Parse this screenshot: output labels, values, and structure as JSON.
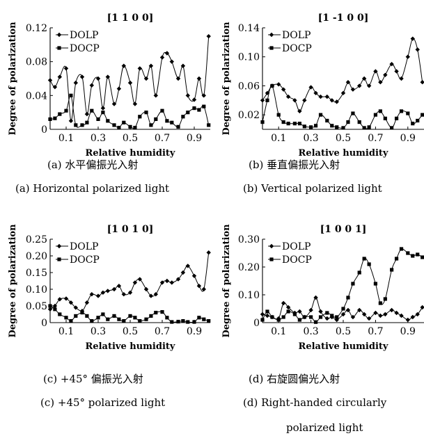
{
  "chart_data": [
    {
      "type": "line",
      "title": "[1 1 0 0]",
      "xlabel": "Relative humidity",
      "ylabel": "Degree of polarization",
      "xlim": [
        0,
        1
      ],
      "ylim": [
        0,
        0.12
      ],
      "xticks": [
        "0.1",
        "0.3",
        "0.5",
        "0.7",
        "0.9"
      ],
      "xtick_values": [
        0.1,
        0.3,
        0.5,
        0.7,
        0.9
      ],
      "yticks": [
        "0",
        "0.04",
        "0.08",
        "0.12"
      ],
      "ytick_values": [
        0,
        0.04,
        0.08,
        0.12
      ],
      "legend": "top-left",
      "caption_cn": "(a) 水平偏振光入射",
      "caption_en": "(a) Horizontal polarized light",
      "series": [
        {
          "name": "DOLP",
          "marker": "diamond",
          "x": [
            0,
            0.03,
            0.06,
            0.1,
            0.13,
            0.16,
            0.2,
            0.23,
            0.26,
            0.3,
            0.33,
            0.36,
            0.4,
            0.43,
            0.46,
            0.5,
            0.53,
            0.56,
            0.6,
            0.63,
            0.66,
            0.7,
            0.73,
            0.76,
            0.8,
            0.83,
            0.86,
            0.9,
            0.93,
            0.96,
            0.99
          ],
          "y": [
            0.058,
            0.05,
            0.062,
            0.072,
            0.01,
            0.055,
            0.062,
            0.018,
            0.052,
            0.06,
            0.025,
            0.062,
            0.03,
            0.048,
            0.075,
            0.055,
            0.03,
            0.072,
            0.06,
            0.075,
            0.04,
            0.085,
            0.09,
            0.08,
            0.06,
            0.075,
            0.04,
            0.035,
            0.06,
            0.04,
            0.11
          ]
        },
        {
          "name": "DOCP",
          "marker": "square",
          "x": [
            0,
            0.03,
            0.06,
            0.1,
            0.13,
            0.16,
            0.2,
            0.23,
            0.26,
            0.3,
            0.33,
            0.36,
            0.4,
            0.43,
            0.46,
            0.5,
            0.53,
            0.56,
            0.6,
            0.63,
            0.66,
            0.7,
            0.73,
            0.76,
            0.8,
            0.83,
            0.86,
            0.9,
            0.93,
            0.96,
            0.99
          ],
          "y": [
            0.012,
            0.013,
            0.018,
            0.022,
            0.04,
            0.005,
            0.005,
            0.008,
            0.022,
            0.012,
            0.02,
            0.01,
            0.005,
            0.002,
            0.008,
            0.003,
            0.002,
            0.015,
            0.02,
            0.005,
            0.012,
            0.022,
            0.01,
            0.008,
            0.003,
            0.015,
            0.02,
            0.025,
            0.023,
            0.027,
            0.005
          ]
        }
      ]
    },
    {
      "type": "line",
      "title": "[1 -1 0 0]",
      "xlabel": "Relative humidity",
      "ylabel": "Degree of polarization",
      "xlim": [
        0,
        1
      ],
      "ylim": [
        0,
        0.14
      ],
      "xticks": [
        "0.1",
        "0.3",
        "0.5",
        "0.7",
        "0.9"
      ],
      "xtick_values": [
        0.1,
        0.3,
        0.5,
        0.7,
        0.9
      ],
      "yticks": [
        "0.02",
        "0.06",
        "0.10",
        "0.14"
      ],
      "ytick_values": [
        0.02,
        0.06,
        0.1,
        0.14
      ],
      "legend": "top-left",
      "caption_cn": "(b) 垂直偏振光入射",
      "caption_en": "(b) Vertical polarized light",
      "series": [
        {
          "name": "DOLP",
          "marker": "diamond",
          "x": [
            0,
            0.03,
            0.06,
            0.1,
            0.13,
            0.16,
            0.2,
            0.23,
            0.26,
            0.3,
            0.33,
            0.36,
            0.4,
            0.43,
            0.46,
            0.5,
            0.53,
            0.56,
            0.6,
            0.63,
            0.66,
            0.7,
            0.73,
            0.76,
            0.8,
            0.83,
            0.86,
            0.9,
            0.93,
            0.96,
            0.99
          ],
          "y": [
            0.04,
            0.05,
            0.06,
            0.062,
            0.055,
            0.045,
            0.04,
            0.025,
            0.04,
            0.058,
            0.05,
            0.045,
            0.045,
            0.04,
            0.038,
            0.05,
            0.065,
            0.055,
            0.06,
            0.07,
            0.06,
            0.08,
            0.065,
            0.075,
            0.09,
            0.08,
            0.07,
            0.1,
            0.125,
            0.11,
            0.065
          ]
        },
        {
          "name": "DOCP",
          "marker": "square",
          "x": [
            0,
            0.03,
            0.06,
            0.1,
            0.13,
            0.16,
            0.2,
            0.23,
            0.26,
            0.3,
            0.33,
            0.36,
            0.4,
            0.43,
            0.46,
            0.5,
            0.53,
            0.56,
            0.6,
            0.63,
            0.66,
            0.7,
            0.73,
            0.76,
            0.8,
            0.83,
            0.86,
            0.9,
            0.93,
            0.96,
            0.99
          ],
          "y": [
            0.01,
            0.04,
            0.06,
            0.02,
            0.01,
            0.008,
            0.008,
            0.008,
            0.004,
            0.003,
            0.005,
            0.02,
            0.012,
            0.005,
            0.003,
            0.002,
            0.01,
            0.022,
            0.01,
            0.002,
            0.003,
            0.02,
            0.025,
            0.015,
            0.002,
            0.015,
            0.025,
            0.022,
            0.008,
            0.012,
            0.02
          ]
        }
      ]
    },
    {
      "type": "line",
      "title": "[1 0 1 0]",
      "xlabel": "Relative humidity",
      "ylabel": "Degree of polarization",
      "xlim": [
        0,
        1
      ],
      "ylim": [
        0,
        0.25
      ],
      "xticks": [
        "0.1",
        "0.3",
        "0.5",
        "0.7",
        "0.9"
      ],
      "xtick_values": [
        0.1,
        0.3,
        0.5,
        0.7,
        0.9
      ],
      "yticks": [
        "0",
        "0.05",
        "0.10",
        "0.15",
        "0.20",
        "0.25"
      ],
      "ytick_values": [
        0,
        0.05,
        0.1,
        0.15,
        0.2,
        0.25
      ],
      "legend": "top-left",
      "caption_cn": "(c) +45° 偏振光入射",
      "caption_en": "(c) +45° polarized light",
      "series": [
        {
          "name": "DOLP",
          "marker": "diamond",
          "x": [
            0,
            0.03,
            0.06,
            0.1,
            0.13,
            0.16,
            0.2,
            0.23,
            0.26,
            0.3,
            0.33,
            0.36,
            0.4,
            0.43,
            0.46,
            0.5,
            0.53,
            0.56,
            0.6,
            0.63,
            0.66,
            0.7,
            0.73,
            0.76,
            0.8,
            0.83,
            0.86,
            0.9,
            0.93,
            0.96,
            0.99
          ],
          "y": [
            0.04,
            0.05,
            0.07,
            0.072,
            0.06,
            0.045,
            0.035,
            0.06,
            0.085,
            0.08,
            0.09,
            0.095,
            0.1,
            0.11,
            0.085,
            0.09,
            0.12,
            0.13,
            0.1,
            0.08,
            0.085,
            0.12,
            0.125,
            0.12,
            0.13,
            0.15,
            0.17,
            0.14,
            0.11,
            0.1,
            0.21
          ]
        },
        {
          "name": "DOCP",
          "marker": "square",
          "x": [
            0,
            0.03,
            0.06,
            0.1,
            0.13,
            0.16,
            0.2,
            0.23,
            0.26,
            0.3,
            0.33,
            0.36,
            0.4,
            0.43,
            0.46,
            0.5,
            0.53,
            0.56,
            0.6,
            0.63,
            0.66,
            0.7,
            0.73,
            0.76,
            0.8,
            0.83,
            0.86,
            0.9,
            0.93,
            0.96,
            0.99
          ],
          "y": [
            0.05,
            0.04,
            0.025,
            0.015,
            0.005,
            0.02,
            0.03,
            0.02,
            0.005,
            0.015,
            0.025,
            0.01,
            0.02,
            0.01,
            0.005,
            0.02,
            0.015,
            0.005,
            0.01,
            0.02,
            0.03,
            0.032,
            0.015,
            0.002,
            0.003,
            0.005,
            0.002,
            0.002,
            0.015,
            0.01,
            0.005
          ]
        }
      ]
    },
    {
      "type": "line",
      "title": "[1 0 0 1]",
      "xlabel": "Relative humidity",
      "ylabel": "Degree of polarization",
      "xlim": [
        0,
        1
      ],
      "ylim": [
        0,
        0.3
      ],
      "xticks": [
        "0.1",
        "0.3",
        "0.5",
        "0.7",
        "0.9"
      ],
      "xtick_values": [
        0.1,
        0.3,
        0.5,
        0.7,
        0.9
      ],
      "yticks": [
        "0",
        "0.10",
        "0.20",
        "0.30"
      ],
      "ytick_values": [
        0,
        0.1,
        0.2,
        0.3
      ],
      "legend": "top-left",
      "caption_cn": "(d) 右旋圆偏光入射",
      "caption_en": "(d) Right-handed circularly",
      "caption_en2": "polarized light",
      "series": [
        {
          "name": "DOLP",
          "marker": "diamond",
          "x": [
            0,
            0.03,
            0.06,
            0.1,
            0.13,
            0.16,
            0.2,
            0.23,
            0.26,
            0.3,
            0.33,
            0.36,
            0.4,
            0.43,
            0.46,
            0.5,
            0.53,
            0.56,
            0.6,
            0.63,
            0.66,
            0.7,
            0.73,
            0.76,
            0.8,
            0.83,
            0.86,
            0.9,
            0.93,
            0.96,
            0.99
          ],
          "y": [
            0.03,
            0.025,
            0.02,
            0.015,
            0.07,
            0.055,
            0.035,
            0.04,
            0.02,
            0.045,
            0.09,
            0.04,
            0.015,
            0.02,
            0.01,
            0.03,
            0.045,
            0.02,
            0.045,
            0.03,
            0.015,
            0.035,
            0.025,
            0.03,
            0.045,
            0.035,
            0.025,
            0.01,
            0.02,
            0.03,
            0.055
          ]
        },
        {
          "name": "DOCP",
          "marker": "square",
          "x": [
            0,
            0.03,
            0.06,
            0.1,
            0.13,
            0.16,
            0.2,
            0.23,
            0.26,
            0.3,
            0.33,
            0.36,
            0.4,
            0.43,
            0.46,
            0.5,
            0.53,
            0.56,
            0.6,
            0.63,
            0.66,
            0.7,
            0.73,
            0.76,
            0.8,
            0.83,
            0.86,
            0.9,
            0.93,
            0.96,
            0.99
          ],
          "y": [
            0.01,
            0.04,
            0.02,
            0.01,
            0.02,
            0.04,
            0.03,
            0.01,
            0.02,
            0.02,
            0.002,
            0.02,
            0.035,
            0.025,
            0.02,
            0.05,
            0.09,
            0.14,
            0.18,
            0.23,
            0.21,
            0.14,
            0.07,
            0.085,
            0.19,
            0.23,
            0.265,
            0.25,
            0.24,
            0.245,
            0.235
          ]
        }
      ]
    }
  ]
}
